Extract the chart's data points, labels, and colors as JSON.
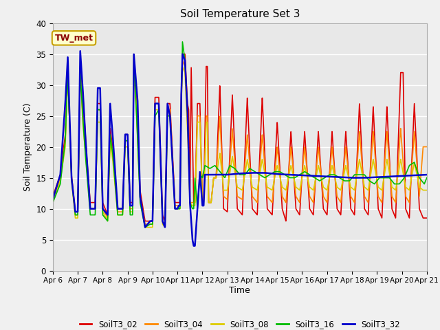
{
  "title": "Soil Temperature Set 3",
  "xlabel": "Time",
  "ylabel": "Soil Temperature (C)",
  "ylim": [
    0,
    40
  ],
  "bg_color": "#e8e8e8",
  "fig_color": "#f0f0f0",
  "annotation_text": "TW_met",
  "annotation_color": "#8b0000",
  "annotation_bg": "#ffffcc",
  "annotation_border": "#c8a000",
  "series": {
    "SoilT3_02": {
      "color": "#dd0000",
      "linewidth": 1.2
    },
    "SoilT3_04": {
      "color": "#ff8800",
      "linewidth": 1.2
    },
    "SoilT3_08": {
      "color": "#ddcc00",
      "linewidth": 1.2
    },
    "SoilT3_16": {
      "color": "#00bb00",
      "linewidth": 1.2
    },
    "SoilT3_32": {
      "color": "#0000cc",
      "linewidth": 1.8
    }
  },
  "xtick_labels": [
    "Apr 6",
    "Apr 7",
    "Apr 8",
    "Apr 9",
    "Apr 10",
    "Apr 11",
    "Apr 12",
    "Apr 13",
    "Apr 14",
    "Apr 15",
    "Apr 16",
    "Apr 17",
    "Apr 18",
    "Apr 19",
    "Apr 20",
    "Apr 21"
  ],
  "xtick_positions": [
    0,
    1,
    2,
    3,
    4,
    5,
    6,
    7,
    8,
    9,
    10,
    11,
    12,
    13,
    14,
    15
  ],
  "ytick_positions": [
    0,
    5,
    10,
    15,
    20,
    25,
    30,
    35,
    40
  ],
  "grid_color": "#ffffff",
  "grid_linewidth": 1.0
}
